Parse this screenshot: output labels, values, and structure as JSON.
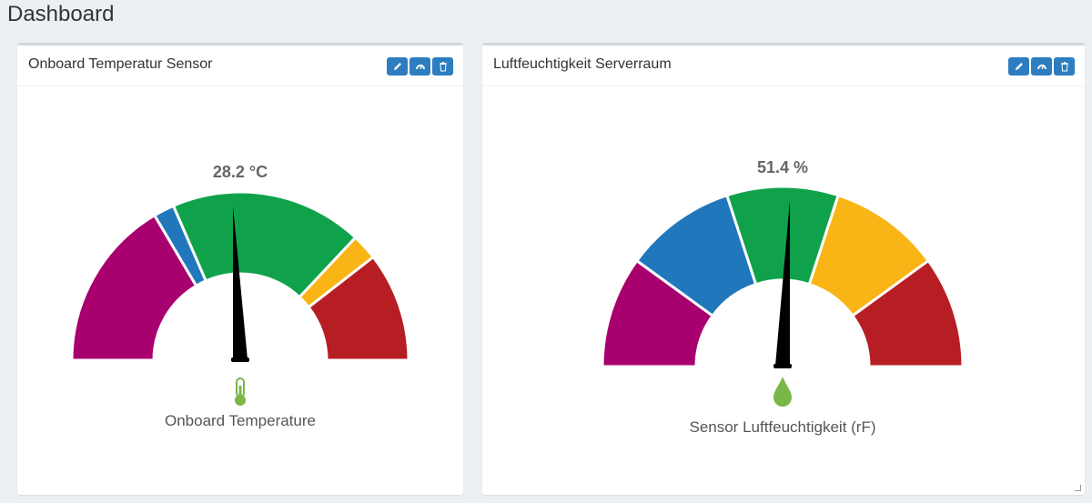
{
  "page": {
    "title": "Dashboard"
  },
  "panels": [
    {
      "title": "Onboard Temperatur Sensor",
      "buttons": [
        {
          "icon": "pencil-icon",
          "action": "edit"
        },
        {
          "icon": "speedometer-icon",
          "action": "gauge"
        },
        {
          "icon": "trash-icon",
          "action": "delete"
        }
      ],
      "gauge": {
        "value_text": "28.2 °C",
        "value": 28.2,
        "label": "Onboard Temperature",
        "icon": "thermometer-icon",
        "segment_fractions": [
          0.33,
          0.04,
          0.37,
          0.05,
          0.21
        ],
        "segment_colors": [
          "#a8006e",
          "#2177bc",
          "#10a24b",
          "#f9b516",
          "#b71e23"
        ],
        "needle_fraction": 0.485,
        "icon_color": "#7ab648"
      }
    },
    {
      "title": "Luftfeuchtigkeit Serverraum",
      "buttons": [
        {
          "icon": "pencil-icon",
          "action": "edit"
        },
        {
          "icon": "speedometer-icon",
          "action": "gauge"
        },
        {
          "icon": "trash-icon",
          "action": "delete"
        }
      ],
      "gauge": {
        "value_text": "51.4 %",
        "value": 51.4,
        "label": "Sensor Luftfeuchtigkeit (rF)",
        "icon": "water-drop-icon",
        "segment_fractions": [
          0.2,
          0.2,
          0.2,
          0.2,
          0.2
        ],
        "segment_colors": [
          "#a8006e",
          "#2177bc",
          "#10a24b",
          "#f9b516",
          "#b71e23"
        ],
        "needle_fraction": 0.514,
        "icon_color": "#7ab648"
      }
    }
  ]
}
